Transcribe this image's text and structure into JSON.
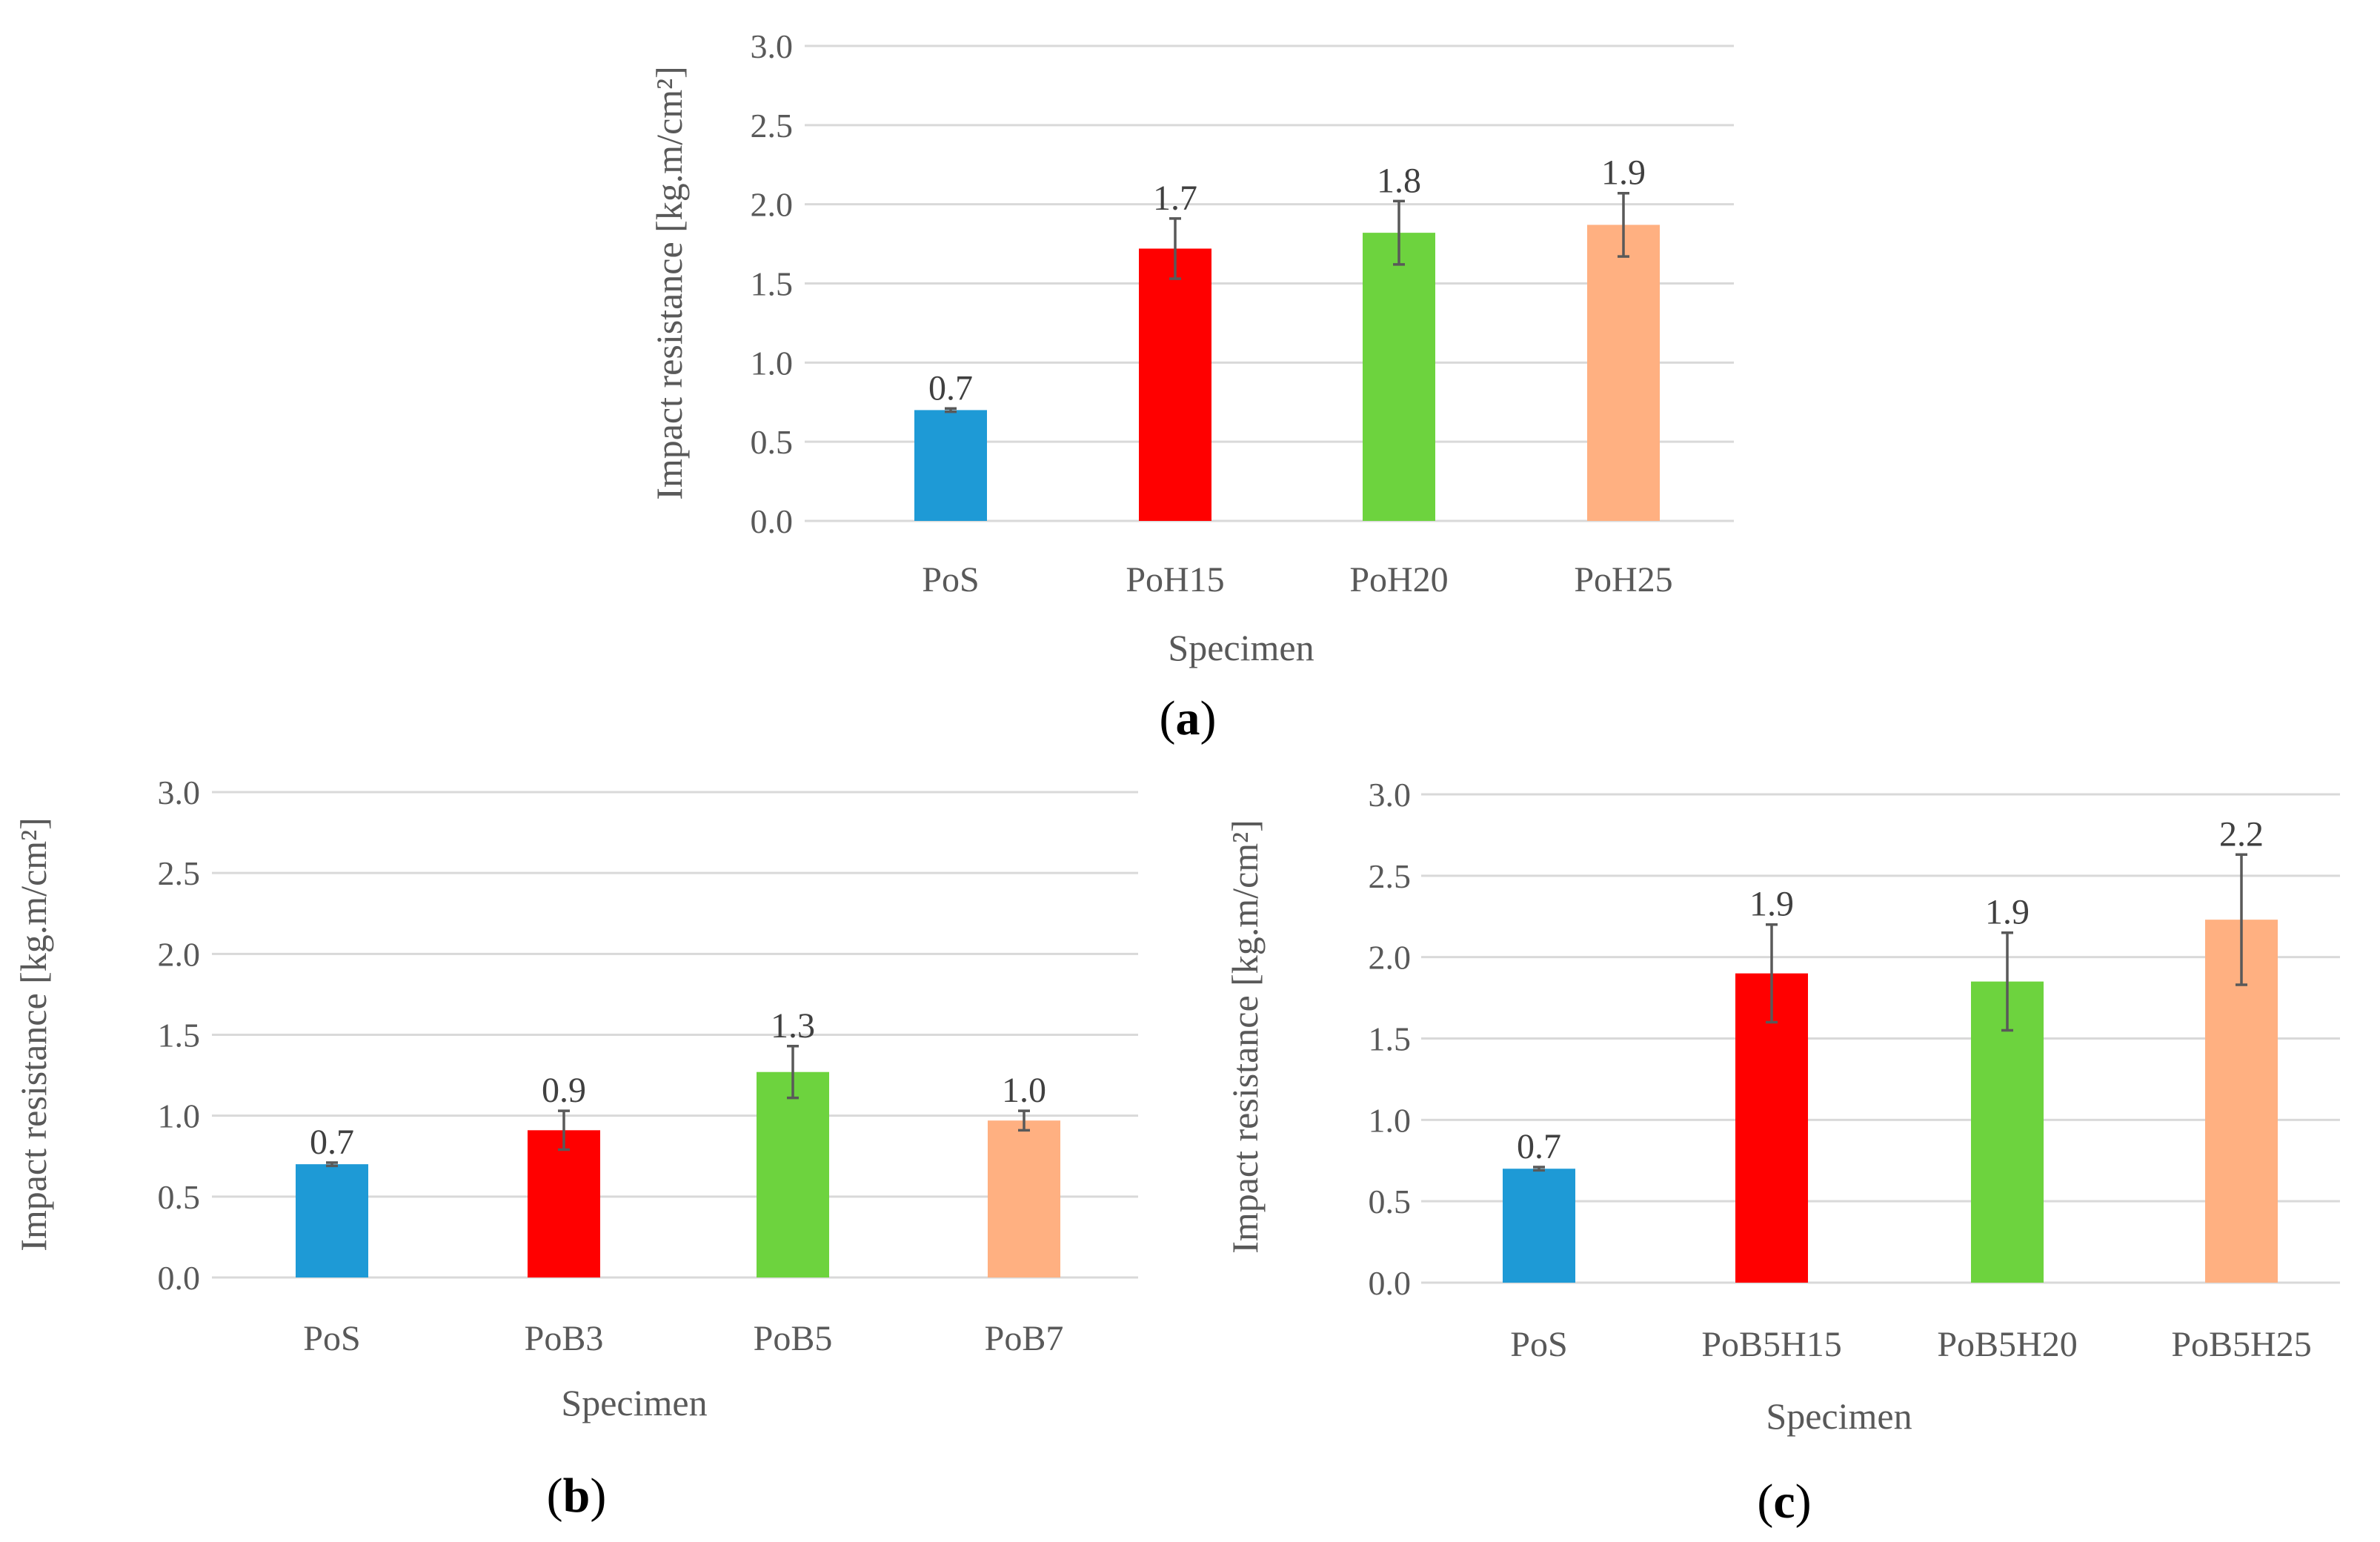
{
  "chart_data": [
    {
      "id": "a",
      "type": "bar",
      "caption_letter": "a",
      "categories": [
        "PoS",
        "PoH15",
        "PoH20",
        "PoH25"
      ],
      "values": [
        0.7,
        1.72,
        1.82,
        1.87
      ],
      "errors": [
        0.01,
        0.19,
        0.2,
        0.2
      ],
      "value_labels": [
        "0.7",
        "1.7",
        "1.8",
        "1.9"
      ],
      "colors": [
        "#1e9ad6",
        "#ff0000",
        "#6dd33e",
        "#ffb081"
      ],
      "ylabel": "Impact resistance [kg.m/cm²]",
      "xlabel": "Specimen",
      "ylim": [
        0,
        3.0
      ],
      "yticks": [
        "0.0",
        "0.5",
        "1.0",
        "1.5",
        "2.0",
        "2.5",
        "3.0"
      ],
      "grid": true
    },
    {
      "id": "b",
      "type": "bar",
      "caption_letter": "b",
      "categories": [
        "PoS",
        "PoB3",
        "PoB5",
        "PoB7"
      ],
      "values": [
        0.7,
        0.91,
        1.27,
        0.97
      ],
      "errors": [
        0.01,
        0.12,
        0.16,
        0.06
      ],
      "value_labels": [
        "0.7",
        "0.9",
        "1.3",
        "1.0"
      ],
      "colors": [
        "#1e9ad6",
        "#ff0000",
        "#6dd33e",
        "#ffb081"
      ],
      "ylabel": "Impact resistance [kg.m/cm²]",
      "xlabel": "Specimen",
      "ylim": [
        0,
        3.0
      ],
      "yticks": [
        "0.0",
        "0.5",
        "1.0",
        "1.5",
        "2.0",
        "2.5",
        "3.0"
      ],
      "grid": true
    },
    {
      "id": "c",
      "type": "bar",
      "caption_letter": "c",
      "categories": [
        "PoS",
        "PoB5H15",
        "PoB5H20",
        "PoB5H25"
      ],
      "values": [
        0.7,
        1.9,
        1.85,
        2.23
      ],
      "errors": [
        0.01,
        0.3,
        0.3,
        0.4
      ],
      "value_labels": [
        "0.7",
        "1.9",
        "1.9",
        "2.2"
      ],
      "colors": [
        "#1e9ad6",
        "#ff0000",
        "#6dd33e",
        "#ffb081"
      ],
      "ylabel": "Impact resistance [kg.m/cm²]",
      "xlabel": "Specimen",
      "ylim": [
        0,
        3.0
      ],
      "yticks": [
        "0.0",
        "0.5",
        "1.0",
        "1.5",
        "2.0",
        "2.5",
        "3.0"
      ],
      "grid": true
    }
  ]
}
